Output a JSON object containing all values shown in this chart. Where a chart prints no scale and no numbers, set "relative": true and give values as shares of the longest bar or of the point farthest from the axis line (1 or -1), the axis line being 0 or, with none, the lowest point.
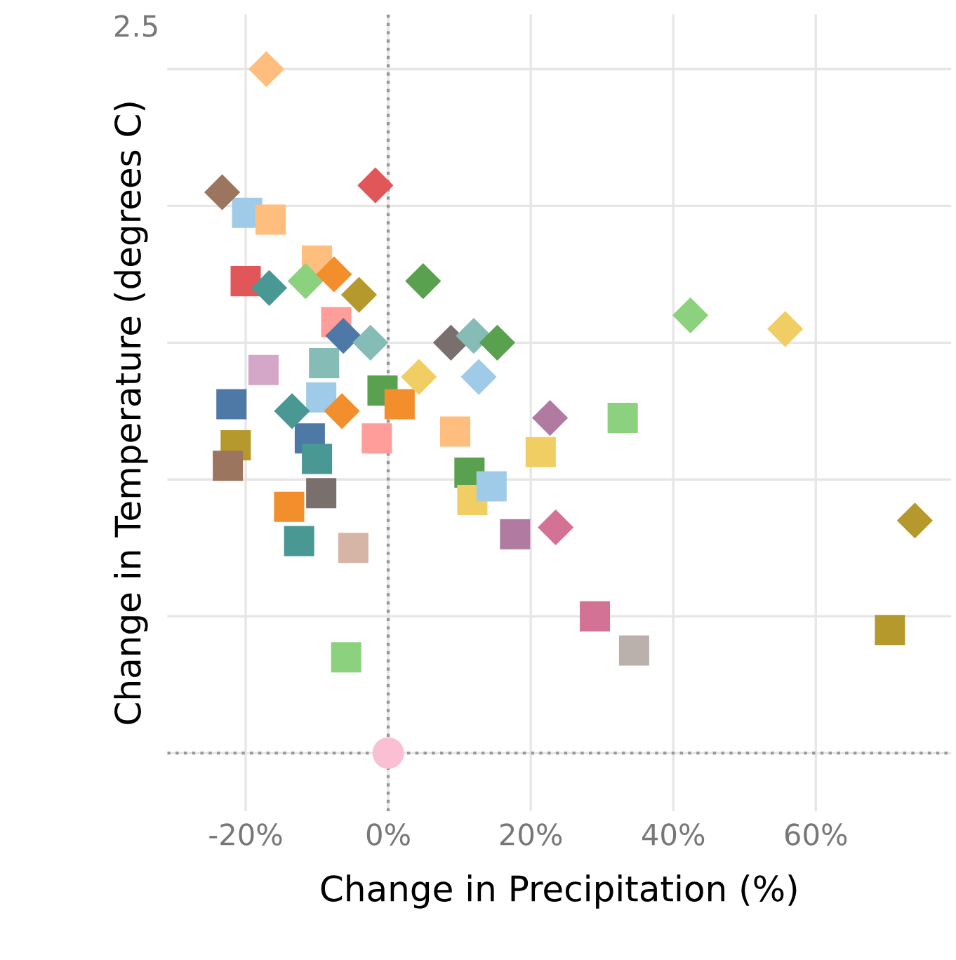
{
  "chart_data": {
    "type": "scatter",
    "xlabel": "Change in Precipitation (%)",
    "ylabel": "Change in Temperature (degrees C)",
    "annotations": [
      "2.5"
    ],
    "relative": true,
    "xlim": [
      -31,
      79
    ],
    "xticks": [
      {
        "value": -20,
        "label": "-20%"
      },
      {
        "value": 0,
        "label": "0%"
      },
      {
        "value": 20,
        "label": "20%"
      },
      {
        "value": 40,
        "label": "40%"
      },
      {
        "value": 60,
        "label": "60%"
      }
    ],
    "grid": true,
    "ref_lines": [
      {
        "axis": "x",
        "value": 0,
        "line_style": "dotted",
        "color": "#999999"
      }
    ],
    "series": [
      {
        "marker": "diamond",
        "x": [
          -17.1,
          -23.3,
          -1.8,
          -11.6,
          -7.6,
          -4.1,
          4.9,
          -16.7,
          42.4,
          55.7,
          -6.3,
          -2.5,
          8.8,
          12.0,
          15.3,
          4.3,
          12.7,
          22.7,
          -13.5,
          -6.5,
          23.5,
          73.9
        ],
        "values": [
          1.0,
          0.82,
          0.83,
          0.69,
          0.7,
          0.67,
          0.69,
          0.68,
          0.64,
          0.62,
          0.61,
          0.6,
          0.6,
          0.61,
          0.6,
          0.55,
          0.55,
          0.49,
          0.5,
          0.5,
          0.33,
          0.34
        ],
        "colors": [
          "#ffbe7d",
          "#9c755f",
          "#e15759",
          "#8cd17d",
          "#f28e2b",
          "#b6992d",
          "#59a14f",
          "#499894",
          "#8cd17d",
          "#f1ce63",
          "#4e79a7",
          "#86bcb6",
          "#79706e",
          "#86bcb6",
          "#59a14f",
          "#f1ce63",
          "#a0cbe8",
          "#b07aa1",
          "#499894",
          "#f28e2b",
          "#d37295",
          "#b6992d"
        ]
      },
      {
        "marker": "square",
        "x": [
          -19.8,
          -16.5,
          -20.0,
          -10.0,
          -7.3,
          -17.5,
          -9.0,
          -0.8,
          1.6,
          -22.0,
          -9.4,
          -11.0,
          -10.0,
          -21.4,
          -22.5,
          -1.6,
          9.4,
          21.4,
          32.9,
          11.4,
          11.8,
          14.5,
          -13.9,
          -9.4,
          -12.5,
          -4.9,
          17.8,
          29.0,
          34.5,
          70.4,
          -5.9
        ],
        "values": [
          0.79,
          0.78,
          0.69,
          0.72,
          0.63,
          0.56,
          0.57,
          0.53,
          0.51,
          0.51,
          0.52,
          0.46,
          0.43,
          0.45,
          0.42,
          0.46,
          0.47,
          0.44,
          0.49,
          0.41,
          0.37,
          0.39,
          0.36,
          0.38,
          0.31,
          0.3,
          0.32,
          0.2,
          0.15,
          0.18,
          0.14
        ],
        "colors": [
          "#a0cbe8",
          "#ffbe7d",
          "#e15759",
          "#ffbe7d",
          "#ff9d9a",
          "#d4a6c8",
          "#86bcb6",
          "#59a14f",
          "#f28e2b",
          "#4e79a7",
          "#a0cbe8",
          "#4e79a7",
          "#499894",
          "#b6992d",
          "#9c755f",
          "#ff9d9a",
          "#ffbe7d",
          "#f1ce63",
          "#8cd17d",
          "#59a14f",
          "#f1ce63",
          "#a0cbe8",
          "#f28e2b",
          "#79706e",
          "#499894",
          "#d7b5a6",
          "#b07aa1",
          "#d37295",
          "#bab0ac",
          "#b6992d",
          "#8cd17d"
        ]
      },
      {
        "marker": "circle",
        "x": [
          0.0
        ],
        "values": [
          0.0
        ],
        "colors": [
          "#fabfd2"
        ]
      }
    ]
  }
}
